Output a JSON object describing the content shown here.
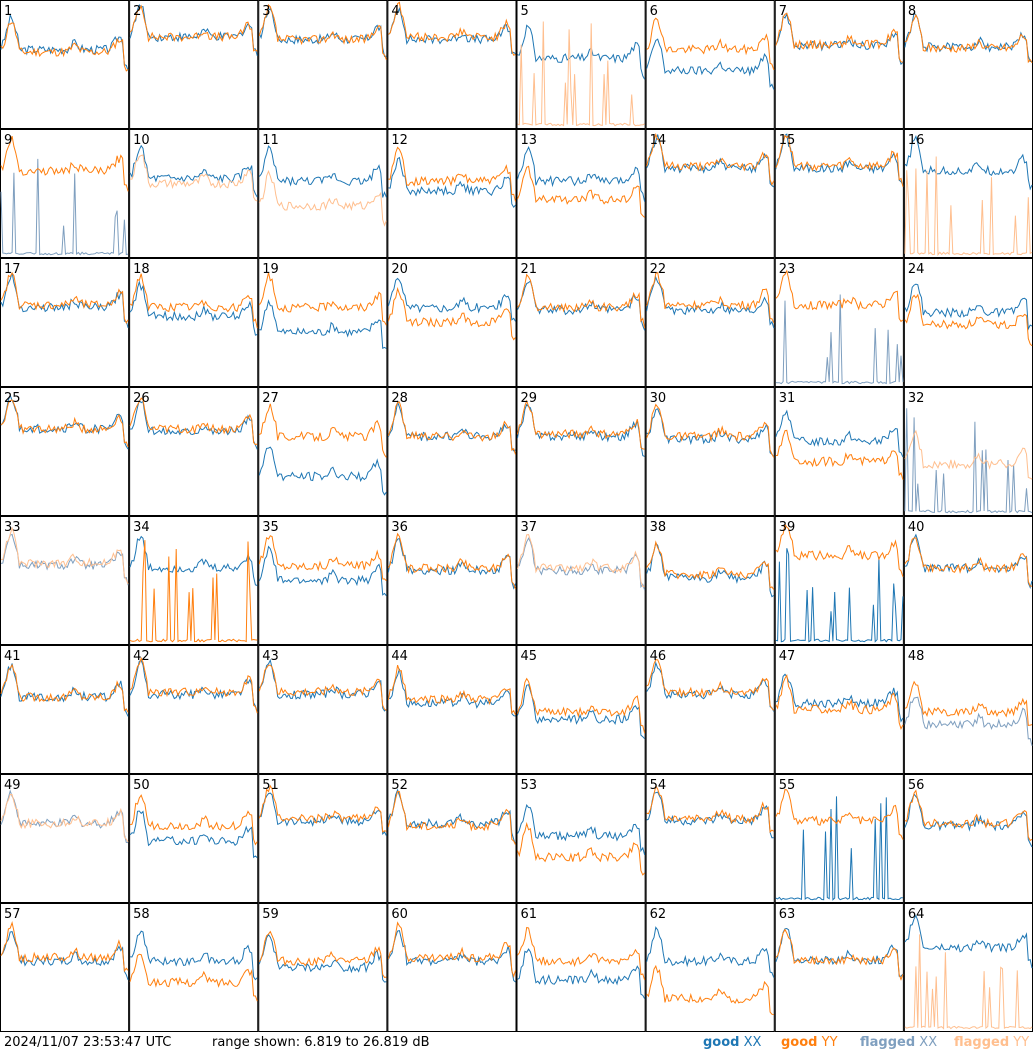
{
  "footer": {
    "timestamp": "2024/11/07 23:53:47 UTC",
    "range_text": "range shown: 6.819 to 26.819 dB"
  },
  "legend": {
    "good_xx_label": "good",
    "good_xx_pol": "XX",
    "good_yy_label": "good",
    "good_yy_pol": "YY",
    "flagged_xx_label": "flagged",
    "flagged_xx_pol": "XX",
    "flagged_yy_label": "flagged",
    "flagged_yy_pol": "YY"
  },
  "colors": {
    "good_xx": "#1f77b4",
    "good_yy": "#ff7f0e",
    "flagged_xx": "#7f9fbf",
    "flagged_yy": "#ffbf8f",
    "frame": "#000000"
  },
  "chart_data": {
    "type": "line",
    "layout": "small-multiples 8x8",
    "y_range_db": [
      6.819,
      26.819
    ],
    "series_names": [
      "good XX",
      "good YY",
      "flagged XX",
      "flagged YY"
    ],
    "panels": [
      {
        "id": "1",
        "xx": "good",
        "yy": "good",
        "xx_level": 0.62,
        "yy_level": 0.6
      },
      {
        "id": "2",
        "xx": "good",
        "yy": "good",
        "xx_level": 0.72,
        "yy_level": 0.72
      },
      {
        "id": "3",
        "xx": "good",
        "yy": "good",
        "xx_level": 0.7,
        "yy_level": 0.7
      },
      {
        "id": "4",
        "xx": "good",
        "yy": "good",
        "xx_level": 0.7,
        "yy_level": 0.72
      },
      {
        "id": "5",
        "xx": "good",
        "yy": "flagged",
        "xx_level": 0.55,
        "yy_level": 0.05
      },
      {
        "id": "6",
        "xx": "good",
        "yy": "good",
        "xx_level": 0.45,
        "yy_level": 0.62
      },
      {
        "id": "7",
        "xx": "good",
        "yy": "good",
        "xx_level": 0.65,
        "yy_level": 0.66
      },
      {
        "id": "8",
        "xx": "good",
        "yy": "good",
        "xx_level": 0.64,
        "yy_level": 0.63
      },
      {
        "id": "9",
        "xx": "flagged",
        "yy": "good",
        "xx_level": 0.05,
        "yy_level": 0.68
      },
      {
        "id": "10",
        "xx": "good",
        "yy": "flagged",
        "xx_level": 0.62,
        "yy_level": 0.58
      },
      {
        "id": "11",
        "xx": "good",
        "yy": "flagged",
        "xx_level": 0.6,
        "yy_level": 0.4
      },
      {
        "id": "12",
        "xx": "good",
        "yy": "good",
        "xx_level": 0.52,
        "yy_level": 0.6
      },
      {
        "id": "13",
        "xx": "good",
        "yy": "good",
        "xx_level": 0.6,
        "yy_level": 0.45
      },
      {
        "id": "14",
        "xx": "good",
        "yy": "good",
        "xx_level": 0.7,
        "yy_level": 0.72
      },
      {
        "id": "15",
        "xx": "good",
        "yy": "good",
        "xx_level": 0.7,
        "yy_level": 0.72
      },
      {
        "id": "16",
        "xx": "good",
        "yy": "flagged",
        "xx_level": 0.68,
        "yy_level": 0.05
      },
      {
        "id": "17",
        "xx": "good",
        "yy": "good",
        "xx_level": 0.62,
        "yy_level": 0.64
      },
      {
        "id": "18",
        "xx": "good",
        "yy": "good",
        "xx_level": 0.55,
        "yy_level": 0.62
      },
      {
        "id": "19",
        "xx": "good",
        "yy": "good",
        "xx_level": 0.42,
        "yy_level": 0.62
      },
      {
        "id": "20",
        "xx": "good",
        "yy": "good",
        "xx_level": 0.62,
        "yy_level": 0.5
      },
      {
        "id": "21",
        "xx": "good",
        "yy": "good",
        "xx_level": 0.6,
        "yy_level": 0.62
      },
      {
        "id": "22",
        "xx": "good",
        "yy": "good",
        "xx_level": 0.6,
        "yy_level": 0.64
      },
      {
        "id": "23",
        "xx": "flagged",
        "yy": "good",
        "xx_level": 0.08,
        "yy_level": 0.64
      },
      {
        "id": "24",
        "xx": "good",
        "yy": "good",
        "xx_level": 0.58,
        "yy_level": 0.48
      },
      {
        "id": "25",
        "xx": "good",
        "yy": "good",
        "xx_level": 0.68,
        "yy_level": 0.68
      },
      {
        "id": "26",
        "xx": "good",
        "yy": "good",
        "xx_level": 0.66,
        "yy_level": 0.68
      },
      {
        "id": "27",
        "xx": "good",
        "yy": "good",
        "xx_level": 0.3,
        "yy_level": 0.62
      },
      {
        "id": "28",
        "xx": "good",
        "yy": "good",
        "xx_level": 0.62,
        "yy_level": 0.62
      },
      {
        "id": "29",
        "xx": "good",
        "yy": "good",
        "xx_level": 0.62,
        "yy_level": 0.64
      },
      {
        "id": "30",
        "xx": "good",
        "yy": "good",
        "xx_level": 0.6,
        "yy_level": 0.62
      },
      {
        "id": "31",
        "xx": "good",
        "yy": "good",
        "xx_level": 0.58,
        "yy_level": 0.42
      },
      {
        "id": "32",
        "xx": "flagged",
        "yy": "flagged",
        "xx_level": 0.03,
        "yy_level": 0.4
      },
      {
        "id": "33",
        "xx": "flagged",
        "yy": "flagged",
        "xx_level": 0.62,
        "yy_level": 0.64
      },
      {
        "id": "34",
        "xx": "good",
        "yy": "good",
        "xx_level": 0.6,
        "yy_level": 0.08
      },
      {
        "id": "35",
        "xx": "good",
        "yy": "good",
        "xx_level": 0.5,
        "yy_level": 0.62
      },
      {
        "id": "36",
        "xx": "good",
        "yy": "good",
        "xx_level": 0.58,
        "yy_level": 0.6
      },
      {
        "id": "37",
        "xx": "flagged",
        "yy": "flagged",
        "xx_level": 0.58,
        "yy_level": 0.6
      },
      {
        "id": "38",
        "xx": "good",
        "yy": "good",
        "xx_level": 0.52,
        "yy_level": 0.55
      },
      {
        "id": "39",
        "xx": "good",
        "yy": "good",
        "xx_level": 0.05,
        "yy_level": 0.7
      },
      {
        "id": "40",
        "xx": "good",
        "yy": "good",
        "xx_level": 0.6,
        "yy_level": 0.6
      },
      {
        "id": "41",
        "xx": "good",
        "yy": "good",
        "xx_level": 0.6,
        "yy_level": 0.6
      },
      {
        "id": "42",
        "xx": "good",
        "yy": "good",
        "xx_level": 0.62,
        "yy_level": 0.64
      },
      {
        "id": "43",
        "xx": "good",
        "yy": "good",
        "xx_level": 0.62,
        "yy_level": 0.64
      },
      {
        "id": "44",
        "xx": "good",
        "yy": "good",
        "xx_level": 0.55,
        "yy_level": 0.58
      },
      {
        "id": "45",
        "xx": "good",
        "yy": "good",
        "xx_level": 0.42,
        "yy_level": 0.48
      },
      {
        "id": "46",
        "xx": "good",
        "yy": "good",
        "xx_level": 0.62,
        "yy_level": 0.64
      },
      {
        "id": "47",
        "xx": "good",
        "yy": "good",
        "xx_level": 0.55,
        "yy_level": 0.5
      },
      {
        "id": "48",
        "xx": "flagged",
        "yy": "good",
        "xx_level": 0.38,
        "yy_level": 0.48
      },
      {
        "id": "49",
        "xx": "flagged",
        "yy": "flagged",
        "xx_level": 0.62,
        "yy_level": 0.62
      },
      {
        "id": "50",
        "xx": "good",
        "yy": "good",
        "xx_level": 0.48,
        "yy_level": 0.6
      },
      {
        "id": "51",
        "xx": "good",
        "yy": "good",
        "xx_level": 0.64,
        "yy_level": 0.66
      },
      {
        "id": "52",
        "xx": "good",
        "yy": "good",
        "xx_level": 0.62,
        "yy_level": 0.6
      },
      {
        "id": "53",
        "xx": "good",
        "yy": "good",
        "xx_level": 0.52,
        "yy_level": 0.35
      },
      {
        "id": "54",
        "xx": "good",
        "yy": "good",
        "xx_level": 0.64,
        "yy_level": 0.66
      },
      {
        "id": "55",
        "xx": "good",
        "yy": "good",
        "xx_level": 0.08,
        "yy_level": 0.64
      },
      {
        "id": "56",
        "xx": "good",
        "yy": "good",
        "xx_level": 0.6,
        "yy_level": 0.62
      },
      {
        "id": "57",
        "xx": "good",
        "yy": "good",
        "xx_level": 0.55,
        "yy_level": 0.58
      },
      {
        "id": "58",
        "xx": "good",
        "yy": "good",
        "xx_level": 0.55,
        "yy_level": 0.38
      },
      {
        "id": "59",
        "xx": "good",
        "yy": "good",
        "xx_level": 0.5,
        "yy_level": 0.55
      },
      {
        "id": "60",
        "xx": "good",
        "yy": "good",
        "xx_level": 0.55,
        "yy_level": 0.58
      },
      {
        "id": "61",
        "xx": "good",
        "yy": "good",
        "xx_level": 0.4,
        "yy_level": 0.55
      },
      {
        "id": "62",
        "xx": "good",
        "yy": "good",
        "xx_level": 0.55,
        "yy_level": 0.25
      },
      {
        "id": "63",
        "xx": "good",
        "yy": "good",
        "xx_level": 0.56,
        "yy_level": 0.55
      },
      {
        "id": "64",
        "xx": "good",
        "yy": "flagged",
        "xx_level": 0.66,
        "yy_level": 0.04
      }
    ]
  }
}
